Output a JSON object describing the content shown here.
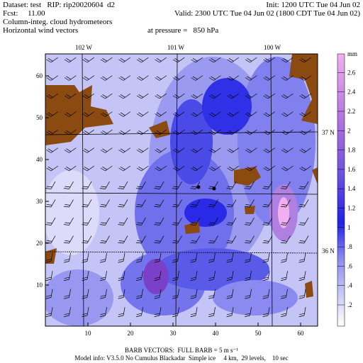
{
  "header": {
    "dataset": "Dataset: test   RIP: rip20020604  d2",
    "init": "Init: 1200 UTC Tue 04 Jun 02",
    "forecast": "Fcst:     11.00",
    "valid": "Valid: 2300 UTC Tue 04 Jun 02 (1800 CDT Tue 04 Jun 02)",
    "field": "Column-integ. cloud hydrometeors",
    "vectors": "Horizontal wind vectors",
    "level": "at pressure =   850 hPa"
  },
  "map": {
    "x_labels": [
      "10",
      "20",
      "30",
      "40",
      "50",
      "60"
    ],
    "y_labels": [
      "10",
      "20",
      "30",
      "40",
      "50",
      "60"
    ],
    "lon_labels": [
      "102 W",
      "101 W",
      "100 W"
    ],
    "lat_labels": [
      "37 N",
      "36 N"
    ]
  },
  "colorbar": {
    "unit": "mm",
    "labels": [
      ".2",
      ".4",
      ".6",
      ".8",
      "1",
      "1.2",
      "1.4",
      "1.6",
      "1.8",
      "2",
      "2.2",
      "2.4",
      "2.6"
    ]
  },
  "footer": {
    "barbs": "BARB VECTORS:  FULL BARB = 5 m s⁻¹",
    "model": "Model info: V3.5.0 No Cumulus Blackadar  Simple ice     4 km,  29 levels,    10 sec"
  }
}
